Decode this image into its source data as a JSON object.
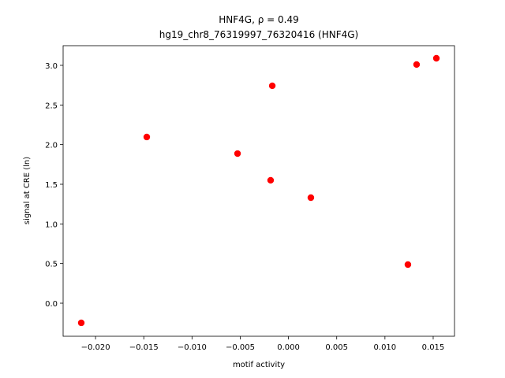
{
  "chart_data": {
    "type": "scatter",
    "title": "HNF4G, ρ = 0.49",
    "subtitle": "hg19_chr8_76319997_76320416 (HNF4G)",
    "x_label": "motif activity",
    "y_label": "signal at CRE (ln)",
    "color": "#ff0000",
    "x": [
      -0.02148,
      -0.01469,
      -0.00528,
      -0.00168,
      -0.00185,
      0.00232,
      0.01238,
      0.01328,
      0.01533
    ],
    "values": [
      -0.248,
      2.096,
      1.887,
      2.742,
      1.55,
      1.331,
      0.487,
      3.01,
      3.089
    ],
    "xlim": [
      -0.02336,
      0.01721
    ],
    "ylim": [
      -0.417,
      3.248
    ],
    "xticks": [
      {
        "value": -0.02,
        "label": "−0.020"
      },
      {
        "value": -0.015,
        "label": "−0.015"
      },
      {
        "value": -0.01,
        "label": "−0.010"
      },
      {
        "value": -0.005,
        "label": "−0.005"
      },
      {
        "value": 0,
        "label": "0.000"
      },
      {
        "value": 0.005,
        "label": "0.005"
      },
      {
        "value": 0.01,
        "label": "0.010"
      },
      {
        "value": 0.015,
        "label": "0.015"
      }
    ],
    "yticks": [
      {
        "value": 0,
        "label": "0.0"
      },
      {
        "value": 0.5,
        "label": "0.5"
      },
      {
        "value": 1,
        "label": "1.0"
      },
      {
        "value": 1.5,
        "label": "1.5"
      },
      {
        "value": 2,
        "label": "2.0"
      },
      {
        "value": 2.5,
        "label": "2.5"
      },
      {
        "value": 3,
        "label": "3.0"
      }
    ]
  }
}
